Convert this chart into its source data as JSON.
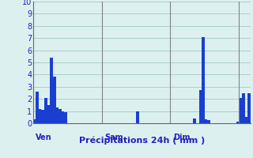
{
  "title": "",
  "xlabel": "Précipitations 24h ( mm )",
  "ylabel": "",
  "ylim": [
    0,
    10
  ],
  "yticks": [
    0,
    1,
    2,
    3,
    4,
    5,
    6,
    7,
    8,
    9,
    10
  ],
  "background_color": "#ddf0f0",
  "bar_color": "#1a3fd0",
  "bar_edge_color": "#1a3fd0",
  "grid_color": "#aacccc",
  "day_line_color": "#808090",
  "values": [
    0.3,
    2.6,
    1.2,
    1.1,
    2.1,
    1.5,
    5.4,
    3.8,
    1.3,
    1.2,
    1.0,
    0.9,
    0.0,
    0.0,
    0.0,
    0.0,
    0.0,
    0.0,
    0.0,
    0.0,
    0.0,
    0.0,
    0.0,
    0.0,
    0.0,
    0.0,
    0.0,
    0.0,
    0.0,
    0.0,
    0.0,
    0.0,
    0.0,
    0.0,
    0.0,
    0.0,
    0.95,
    0.0,
    0.0,
    0.0,
    0.0,
    0.0,
    0.0,
    0.0,
    0.0,
    0.0,
    0.0,
    0.0,
    0.0,
    0.0,
    0.0,
    0.0,
    0.0,
    0.0,
    0.0,
    0.0,
    0.4,
    0.0,
    2.75,
    7.1,
    0.3,
    0.25,
    0.0,
    0.0,
    0.0,
    0.0,
    0.0,
    0.0,
    0.0,
    0.0,
    0.0,
    0.1,
    2.1,
    2.5,
    0.5,
    2.5
  ],
  "day_ticks": [
    0,
    24,
    48,
    72
  ],
  "day_labels": [
    "Ven",
    "Sam",
    "Dim",
    ""
  ],
  "xlabel_color": "#2222bb",
  "xlabel_fontsize": 8,
  "ytick_fontsize": 7,
  "ytick_color": "#2222bb"
}
